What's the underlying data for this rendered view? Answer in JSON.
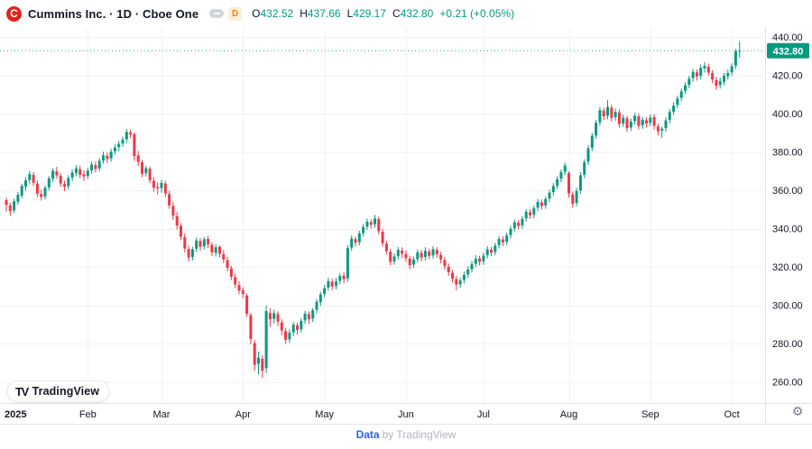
{
  "header": {
    "logo_glyph": "C",
    "title": "Cummins Inc. · 1D · Cboe One",
    "interval_badge": "D",
    "ohlc": {
      "o_label": "O",
      "o_value": "432.52",
      "h_label": "H",
      "h_value": "437.66",
      "l_label": "L",
      "l_value": "429.17",
      "c_label": "C",
      "c_value": "432.80",
      "change": "+0.21 (+0.05%)"
    }
  },
  "colors": {
    "up": "#089981",
    "down": "#f23645",
    "text": "#131722",
    "muted": "#787b86",
    "grid": "#f0f2f6",
    "border": "#e0e3eb",
    "accent_blue": "#2962ff",
    "badge_orange": "#f0870e",
    "logo_red": "#e0251e"
  },
  "icons": {
    "settings_gear": "⚙"
  },
  "footer": {
    "tv_glyph": "TV",
    "logo_text": "TradingView",
    "attribution_link": "Data",
    "attribution_rest": "by TradingView"
  },
  "chart_data": {
    "type": "candlestick",
    "title": "Cummins Inc. 1D Cboe One",
    "up_color": "#089981",
    "down_color": "#f23645",
    "grid": true,
    "y_ticks": [
      440,
      420,
      400,
      380,
      360,
      340,
      320,
      300,
      280,
      260
    ],
    "y_tick_labels": [
      "440.00",
      "420.00",
      "400.00",
      "380.00",
      "360.00",
      "340.00",
      "320.00",
      "300.00",
      "280.00",
      "260.00"
    ],
    "x_labels": [
      {
        "text": "2025",
        "i": 0
      },
      {
        "text": "Feb",
        "i": 21
      },
      {
        "text": "Mar",
        "i": 40
      },
      {
        "text": "Apr",
        "i": 61
      },
      {
        "text": "May",
        "i": 82
      },
      {
        "text": "Jun",
        "i": 103
      },
      {
        "text": "Jul",
        "i": 123
      },
      {
        "text": "Aug",
        "i": 145
      },
      {
        "text": "Sep",
        "i": 166
      },
      {
        "text": "Oct",
        "i": 187
      }
    ],
    "last_price": 432.8,
    "last_price_label": "432.80",
    "candles": [
      [
        354.8,
        356.2,
        348.9,
        352.4
      ],
      [
        352.0,
        353.5,
        346.8,
        349.1
      ],
      [
        349.5,
        355.6,
        348.2,
        354.2
      ],
      [
        354.0,
        359.1,
        352.5,
        357.6
      ],
      [
        357.2,
        363.4,
        355.8,
        362.3
      ],
      [
        362.0,
        366.8,
        359.7,
        365.1
      ],
      [
        365.3,
        370.2,
        363.1,
        368.4
      ],
      [
        368.0,
        369.5,
        362.2,
        363.9
      ],
      [
        363.5,
        365.1,
        356.4,
        358.2
      ],
      [
        358.0,
        360.3,
        354.6,
        356.5
      ],
      [
        356.8,
        362.5,
        355.2,
        361.3
      ],
      [
        361.5,
        367.4,
        359.8,
        366.2
      ],
      [
        366.0,
        371.5,
        364.3,
        370.1
      ],
      [
        369.8,
        372.2,
        366.1,
        367.8
      ],
      [
        367.5,
        368.9,
        361.8,
        363.5
      ],
      [
        363.2,
        365.0,
        359.6,
        361.9
      ],
      [
        362.1,
        367.8,
        360.4,
        366.4
      ],
      [
        366.6,
        370.9,
        364.7,
        369.2
      ],
      [
        369.0,
        373.1,
        367.2,
        371.3
      ],
      [
        371.0,
        372.6,
        366.3,
        368.1
      ],
      [
        368.3,
        370.4,
        364.9,
        367.2
      ],
      [
        367.5,
        371.8,
        365.9,
        370.2
      ],
      [
        370.4,
        375.1,
        368.6,
        373.4
      ],
      [
        373.1,
        374.9,
        369.3,
        371.1
      ],
      [
        371.4,
        376.8,
        369.8,
        375.3
      ],
      [
        375.5,
        380.1,
        373.9,
        378.2
      ],
      [
        378.0,
        379.6,
        374.2,
        376.4
      ],
      [
        376.6,
        381.7,
        374.8,
        380.1
      ],
      [
        380.3,
        383.9,
        378.6,
        382.3
      ],
      [
        382.5,
        385.8,
        380.4,
        384.2
      ],
      [
        384.4,
        387.9,
        382.6,
        386.4
      ],
      [
        386.6,
        391.9,
        384.8,
        390.4
      ],
      [
        390.1,
        391.6,
        387.2,
        389.1
      ],
      [
        389.3,
        390.2,
        375.3,
        377.9
      ],
      [
        378.2,
        380.5,
        372.7,
        374.8
      ],
      [
        374.5,
        375.9,
        366.8,
        368.6
      ],
      [
        368.9,
        372.8,
        367.1,
        371.5
      ],
      [
        371.2,
        372.4,
        363.6,
        365.2
      ],
      [
        365.0,
        366.9,
        359.2,
        361.4
      ],
      [
        361.6,
        364.2,
        357.8,
        360.9
      ],
      [
        361.1,
        365.4,
        358.7,
        363.8
      ],
      [
        363.5,
        364.9,
        356.4,
        358.3
      ],
      [
        358.0,
        359.8,
        350.3,
        352.1
      ],
      [
        351.8,
        353.9,
        344.6,
        346.8
      ],
      [
        346.5,
        348.7,
        339.4,
        341.6
      ],
      [
        341.3,
        342.8,
        333.9,
        335.8
      ],
      [
        335.5,
        337.4,
        327.6,
        329.6
      ],
      [
        329.3,
        331.1,
        322.7,
        324.9
      ],
      [
        325.2,
        330.5,
        323.4,
        329.2
      ],
      [
        329.5,
        335.3,
        327.8,
        333.8
      ],
      [
        333.5,
        334.9,
        328.6,
        330.5
      ],
      [
        330.8,
        335.6,
        329.1,
        334.4
      ],
      [
        334.6,
        336.2,
        329.8,
        331.8
      ],
      [
        331.5,
        332.9,
        325.7,
        327.6
      ],
      [
        327.3,
        331.8,
        325.4,
        330.2
      ],
      [
        330.5,
        331.1,
        324.9,
        326.9
      ],
      [
        326.6,
        328.8,
        321.9,
        323.8
      ],
      [
        323.5,
        325.2,
        317.7,
        319.5
      ],
      [
        319.2,
        320.6,
        313.1,
        314.9
      ],
      [
        314.6,
        316.3,
        308.9,
        310.8
      ],
      [
        310.5,
        312.4,
        305.7,
        307.6
      ],
      [
        307.8,
        309.4,
        303.6,
        305.9
      ],
      [
        305.0,
        306.2,
        293.8,
        295.6
      ],
      [
        294.8,
        296.1,
        279.6,
        282.4
      ],
      [
        280.2,
        281.9,
        265.7,
        268.9
      ],
      [
        269.4,
        275.8,
        263.9,
        272.6
      ],
      [
        272.0,
        273.8,
        262.1,
        265.8
      ],
      [
        267.2,
        299.8,
        264.6,
        296.9
      ],
      [
        295.8,
        298.4,
        288.7,
        292.6
      ],
      [
        292.9,
        297.6,
        290.3,
        295.8
      ],
      [
        295.4,
        296.8,
        289.2,
        291.4
      ],
      [
        291.0,
        292.6,
        284.3,
        286.8
      ],
      [
        286.5,
        288.1,
        279.8,
        281.9
      ],
      [
        282.2,
        287.4,
        280.3,
        285.6
      ],
      [
        285.9,
        291.2,
        283.8,
        289.8
      ],
      [
        289.5,
        290.9,
        284.6,
        287.1
      ],
      [
        287.4,
        293.2,
        285.7,
        291.8
      ],
      [
        292.0,
        297.1,
        290.2,
        295.6
      ],
      [
        295.3,
        296.8,
        290.4,
        292.8
      ],
      [
        293.0,
        298.6,
        291.3,
        297.4
      ],
      [
        297.6,
        303.2,
        295.8,
        301.8
      ],
      [
        301.5,
        307.1,
        299.6,
        305.6
      ],
      [
        305.9,
        310.6,
        304.2,
        308.9
      ],
      [
        309.2,
        314.3,
        307.6,
        312.6
      ],
      [
        312.3,
        313.9,
        307.8,
        309.8
      ],
      [
        310.1,
        314.2,
        308.4,
        312.4
      ],
      [
        312.7,
        316.8,
        310.9,
        315.2
      ],
      [
        315.4,
        317.2,
        311.3,
        313.6
      ],
      [
        314.0,
        331.4,
        312.2,
        329.8
      ],
      [
        330.1,
        336.4,
        328.3,
        334.8
      ],
      [
        334.5,
        335.9,
        330.7,
        332.6
      ],
      [
        332.9,
        338.9,
        331.2,
        337.4
      ],
      [
        337.6,
        342.4,
        335.8,
        340.8
      ],
      [
        341.0,
        345.2,
        339.3,
        343.6
      ],
      [
        343.3,
        344.8,
        339.9,
        341.9
      ],
      [
        342.2,
        347.1,
        340.4,
        345.2
      ],
      [
        344.9,
        346.2,
        336.9,
        338.6
      ],
      [
        338.3,
        339.8,
        330.7,
        332.4
      ],
      [
        332.1,
        333.6,
        326.4,
        328.2
      ],
      [
        327.9,
        329.4,
        320.8,
        322.6
      ],
      [
        322.9,
        327.2,
        321.1,
        325.4
      ],
      [
        325.6,
        330.4,
        323.8,
        328.9
      ],
      [
        328.5,
        330.2,
        324.8,
        326.9
      ],
      [
        326.6,
        328.4,
        322.7,
        324.6
      ],
      [
        324.3,
        325.8,
        318.9,
        320.9
      ],
      [
        321.2,
        325.4,
        319.6,
        323.8
      ],
      [
        324.0,
        329.1,
        322.4,
        327.6
      ],
      [
        327.3,
        328.8,
        322.9,
        324.9
      ],
      [
        325.2,
        330.2,
        323.4,
        328.4
      ],
      [
        328.1,
        329.6,
        323.9,
        325.8
      ],
      [
        326.0,
        330.9,
        324.2,
        329.2
      ],
      [
        328.9,
        330.4,
        324.7,
        326.6
      ],
      [
        326.3,
        327.9,
        321.9,
        323.9
      ],
      [
        323.6,
        325.1,
        318.5,
        320.4
      ],
      [
        320.1,
        321.8,
        315.3,
        317.2
      ],
      [
        316.9,
        318.4,
        311.9,
        313.9
      ],
      [
        313.6,
        315.2,
        307.8,
        310.8
      ],
      [
        310.9,
        314.4,
        309.1,
        312.9
      ],
      [
        313.2,
        317.6,
        311.4,
        315.8
      ],
      [
        316.0,
        320.4,
        314.2,
        318.6
      ],
      [
        318.8,
        323.2,
        317.1,
        321.4
      ],
      [
        321.6,
        326.1,
        319.9,
        324.2
      ],
      [
        324.4,
        325.8,
        320.7,
        322.6
      ],
      [
        322.9,
        327.4,
        321.1,
        325.9
      ],
      [
        326.2,
        330.8,
        324.4,
        329.2
      ],
      [
        329.0,
        330.4,
        325.6,
        327.4
      ],
      [
        327.7,
        332.6,
        326.0,
        331.1
      ],
      [
        331.4,
        336.1,
        329.6,
        334.6
      ],
      [
        334.3,
        335.9,
        330.9,
        332.8
      ],
      [
        333.1,
        337.9,
        331.3,
        336.4
      ],
      [
        336.6,
        341.4,
        334.8,
        339.9
      ],
      [
        340.1,
        344.8,
        338.4,
        343.2
      ],
      [
        343.0,
        344.4,
        339.6,
        341.4
      ],
      [
        341.7,
        346.6,
        339.9,
        345.1
      ],
      [
        345.4,
        350.2,
        343.6,
        348.8
      ],
      [
        348.5,
        350.1,
        345.1,
        346.9
      ],
      [
        347.2,
        352.1,
        345.4,
        350.6
      ],
      [
        350.9,
        355.4,
        349.1,
        353.9
      ],
      [
        353.6,
        355.1,
        349.9,
        351.8
      ],
      [
        352.1,
        356.9,
        350.3,
        355.4
      ],
      [
        355.6,
        360.3,
        353.8,
        358.8
      ],
      [
        359.0,
        363.7,
        357.2,
        362.2
      ],
      [
        362.4,
        367.3,
        360.6,
        365.8
      ],
      [
        366.0,
        370.9,
        364.2,
        369.4
      ],
      [
        369.6,
        374.4,
        367.8,
        372.9
      ],
      [
        368.9,
        369.8,
        356.2,
        358.4
      ],
      [
        357.8,
        359.4,
        350.8,
        352.9
      ],
      [
        353.4,
        361.2,
        351.6,
        359.6
      ],
      [
        359.9,
        369.4,
        358.1,
        367.8
      ],
      [
        368.1,
        376.2,
        366.3,
        374.6
      ],
      [
        374.9,
        383.4,
        373.1,
        381.9
      ],
      [
        382.2,
        389.9,
        380.4,
        388.4
      ],
      [
        388.6,
        396.8,
        386.8,
        395.2
      ],
      [
        395.5,
        403.4,
        393.7,
        401.8
      ],
      [
        401.5,
        403.1,
        396.7,
        398.6
      ],
      [
        398.9,
        407.1,
        397.1,
        403.4
      ],
      [
        403.1,
        404.6,
        395.9,
        397.8
      ],
      [
        398.1,
        402.6,
        396.3,
        400.9
      ],
      [
        400.6,
        402.1,
        392.7,
        394.6
      ],
      [
        394.9,
        399.4,
        393.1,
        397.8
      ],
      [
        397.5,
        398.9,
        390.5,
        392.4
      ],
      [
        392.7,
        397.4,
        390.9,
        395.8
      ],
      [
        396.1,
        400.4,
        394.3,
        398.9
      ],
      [
        398.6,
        400.1,
        391.7,
        393.6
      ],
      [
        393.9,
        398.3,
        392.1,
        396.8
      ],
      [
        396.5,
        398.1,
        392.9,
        394.9
      ],
      [
        395.2,
        399.6,
        393.4,
        397.9
      ],
      [
        398.2,
        399.7,
        391.8,
        393.6
      ],
      [
        393.3,
        394.9,
        388.6,
        390.8
      ],
      [
        391.1,
        393.2,
        387.4,
        392.1
      ],
      [
        392.4,
        398.1,
        390.6,
        396.4
      ],
      [
        396.7,
        402.3,
        394.9,
        400.8
      ],
      [
        401.0,
        405.8,
        399.2,
        404.2
      ],
      [
        404.5,
        409.4,
        402.7,
        407.9
      ],
      [
        408.2,
        413.1,
        406.4,
        411.6
      ],
      [
        411.9,
        416.4,
        410.1,
        414.8
      ],
      [
        415.0,
        419.8,
        413.2,
        418.2
      ],
      [
        418.5,
        423.4,
        416.7,
        421.8
      ],
      [
        421.5,
        423.1,
        417.2,
        419.4
      ],
      [
        419.7,
        425.6,
        417.9,
        423.9
      ],
      [
        423.6,
        426.8,
        421.4,
        424.9
      ],
      [
        424.5,
        426.1,
        419.7,
        421.4
      ],
      [
        421.1,
        422.6,
        415.9,
        417.8
      ],
      [
        417.5,
        419.2,
        412.4,
        414.6
      ],
      [
        414.9,
        418.8,
        413.1,
        416.9
      ],
      [
        416.6,
        421.2,
        414.8,
        419.8
      ],
      [
        419.5,
        422.9,
        417.7,
        421.2
      ],
      [
        421.5,
        426.2,
        419.7,
        424.8
      ],
      [
        425.1,
        433.6,
        423.3,
        432.59
      ],
      [
        432.52,
        437.66,
        429.17,
        432.8
      ]
    ]
  }
}
